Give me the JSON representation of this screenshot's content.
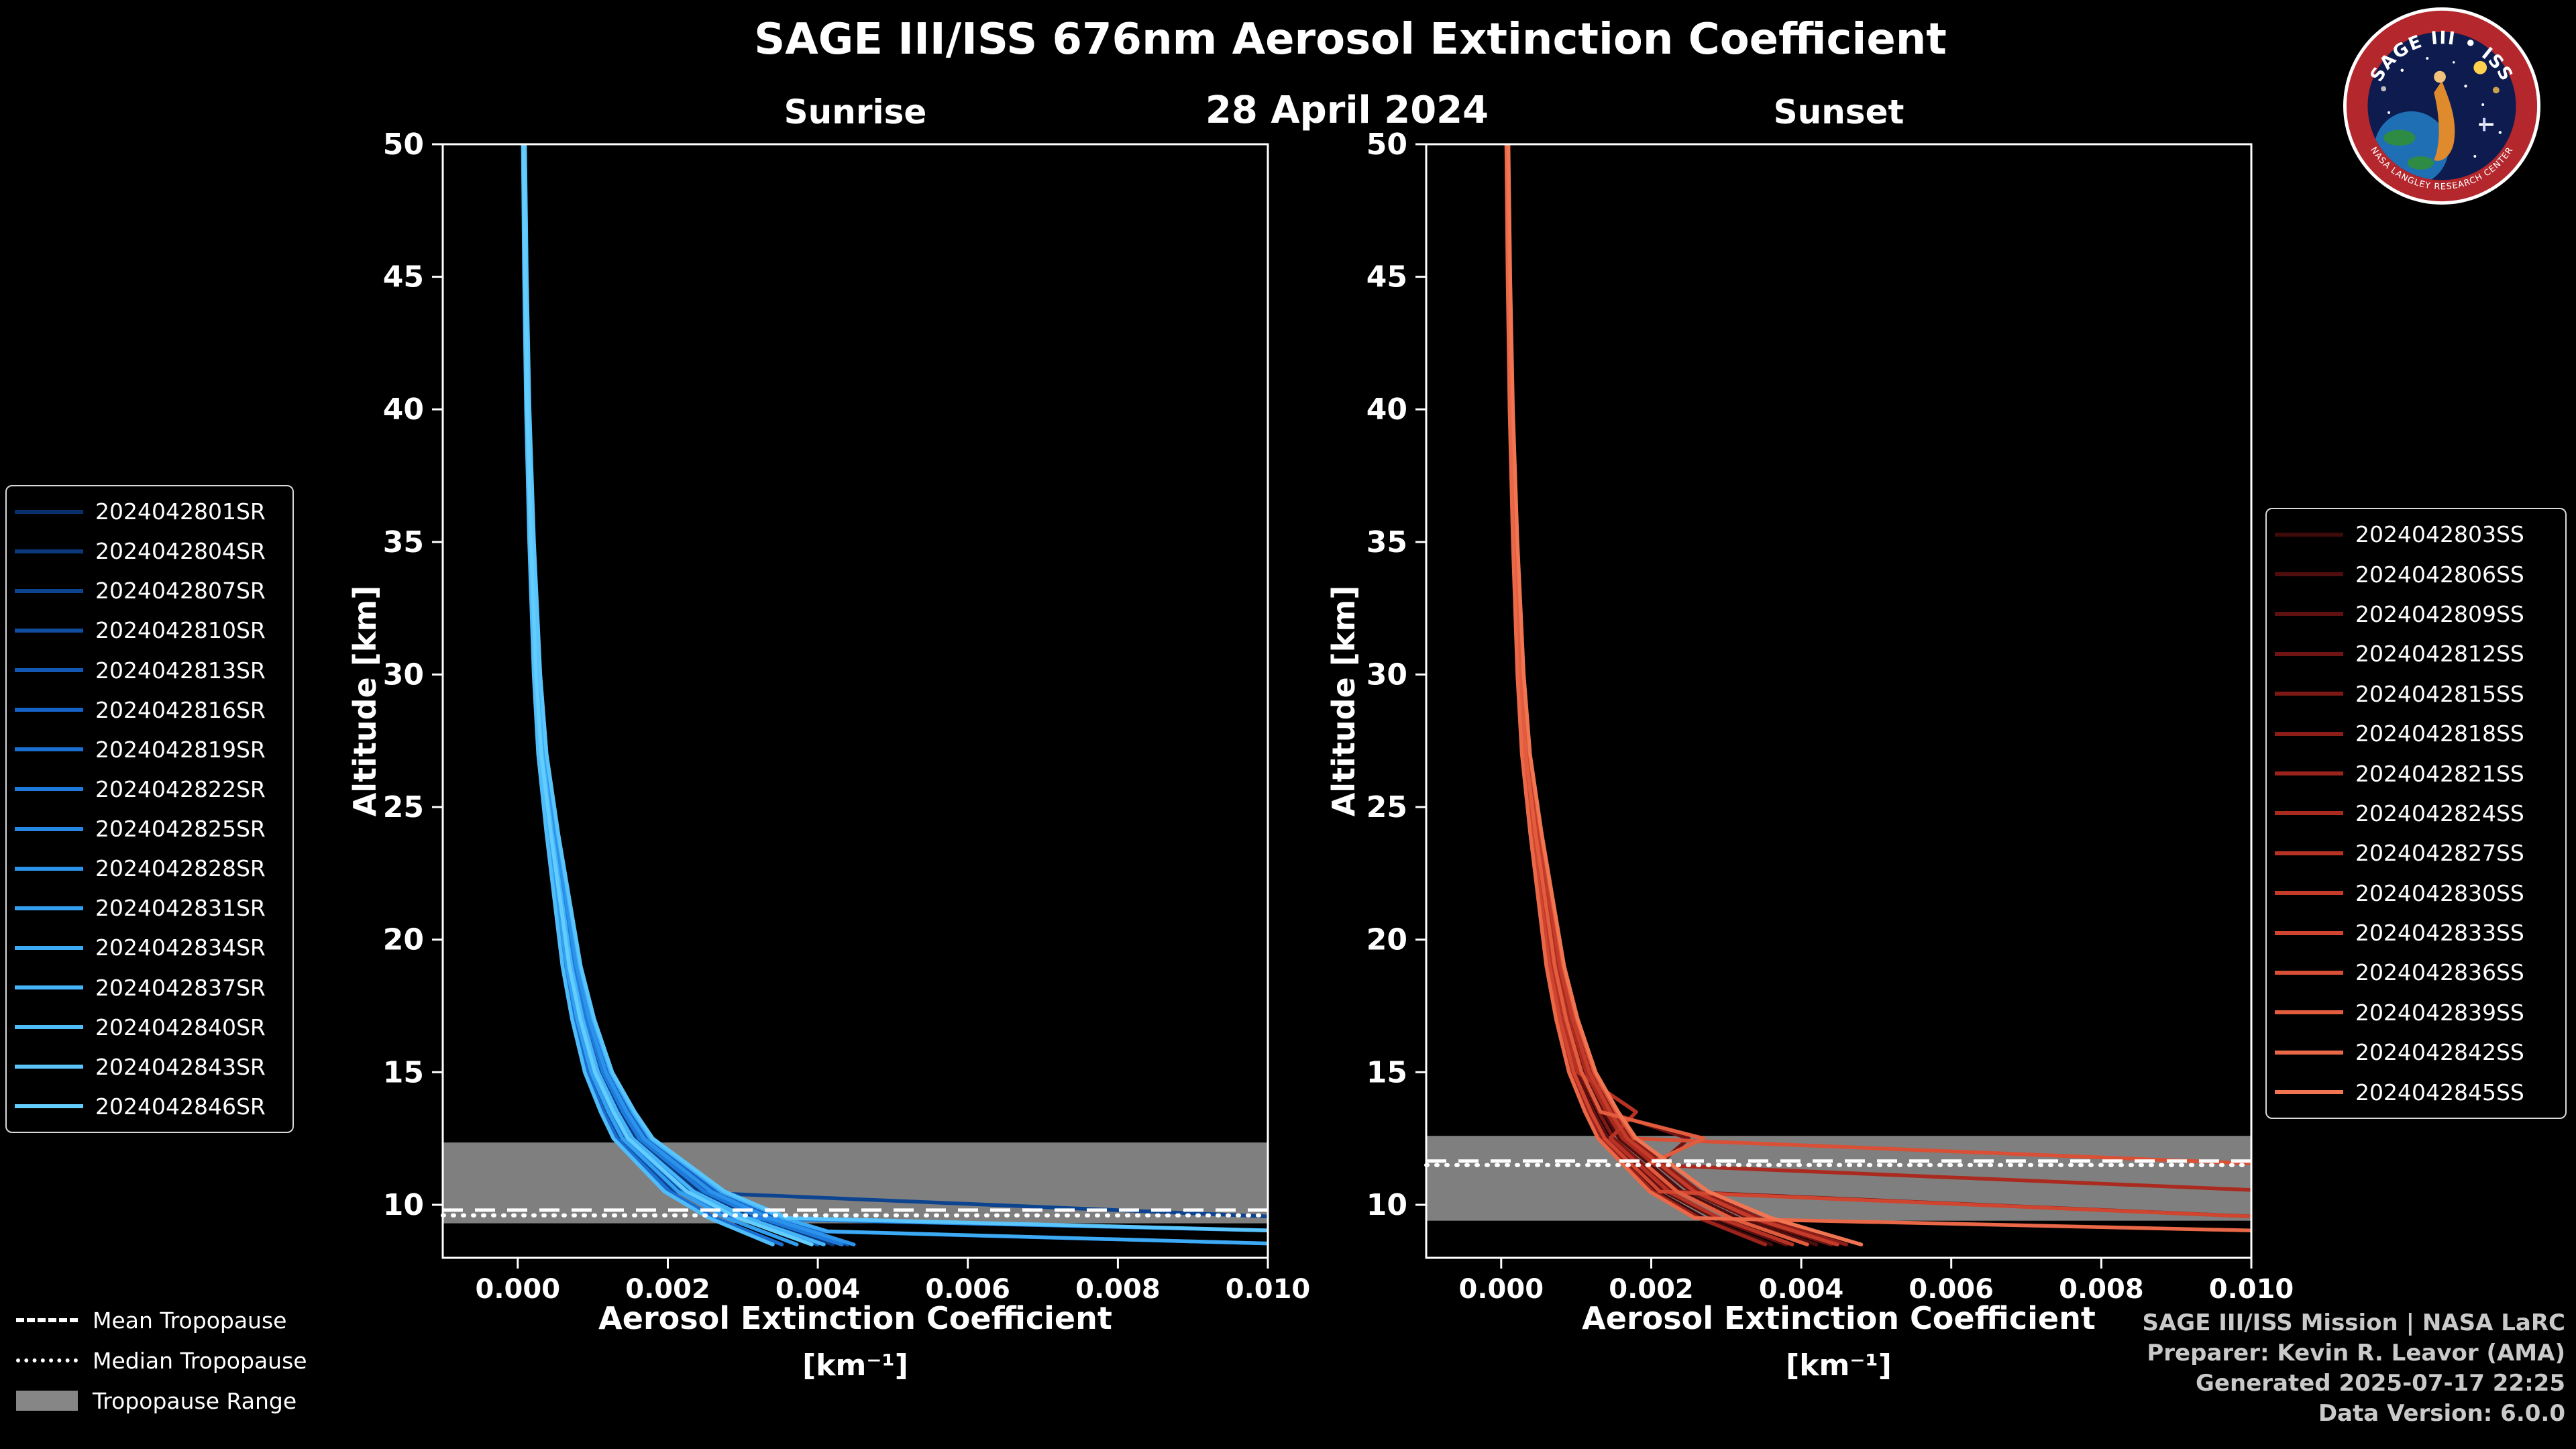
{
  "title": "SAGE III/ISS 676nm Aerosol Extinction Coefficient",
  "date": "28 April 2024",
  "panels": {
    "left_title": "Sunrise",
    "right_title": "Sunset"
  },
  "axis": {
    "xlabel": "Aerosol Extinction Coefficient",
    "xunits": "[km⁻¹]",
    "ylabel": "Altitude [km]",
    "xlim": [
      -0.001,
      0.01
    ],
    "ylim": [
      8,
      50
    ],
    "xticks": [
      0,
      0.002,
      0.004,
      0.006,
      0.008,
      0.01
    ],
    "xtick_labels": [
      "0.000",
      "0.002",
      "0.004",
      "0.006",
      "0.008",
      "0.010"
    ],
    "yticks": [
      10,
      15,
      20,
      25,
      30,
      35,
      40,
      45,
      50
    ]
  },
  "styles": {
    "band_color": "#868686",
    "tropopause_line_color": "#ffffff",
    "background": "#000000"
  },
  "tropopause_legend": {
    "mean": "Mean Tropopause",
    "median": "Median Tropopause",
    "range": "Tropopause Range"
  },
  "footer": {
    "line1": "SAGE III/ISS Mission | NASA LaRC",
    "line2": "Preparer: Kevin R. Leavor (AMA)",
    "line3": "Generated 2025-07-17 22:25",
    "line4": "Data Version: 6.0.0"
  },
  "logo": {
    "title": "SAGE III • ISS",
    "ring_text": "NASA LANGLEY RESEARCH CENTER"
  },
  "chart_data": [
    {
      "type": "line",
      "panel": "sunrise",
      "title": "Sunrise",
      "orientation": "vertical-profile",
      "xlabel": "Aerosol Extinction Coefficient [km⁻¹]",
      "ylabel": "Altitude [km]",
      "xlim": [
        -0.001,
        0.01
      ],
      "ylim": [
        8,
        50
      ],
      "tropopause": {
        "mean": 9.8,
        "median": 9.6,
        "range": [
          9.3,
          12.35
        ]
      },
      "altitudes": [
        50,
        45,
        40,
        35,
        30,
        27,
        24,
        21,
        19,
        17,
        15,
        13.5,
        12.5,
        11.5,
        10.5,
        9.5,
        9,
        8.5
      ],
      "series": [
        {
          "name": "2024042801SR",
          "color": "#08306b",
          "values": [
            7.6e-05,
            9.5e-05,
            0.000124,
            0.000171,
            0.000238,
            0.000304,
            0.000428,
            0.00057,
            0.000665,
            0.000808,
            0.000998,
            0.001235,
            0.001425,
            0.001805,
            0.002185,
            0.00285,
            0.0105,
            null
          ]
        },
        {
          "name": "2024042804SR",
          "color": "#0a3a7d",
          "values": [
            8.4e-05,
            0.000105,
            0.000137,
            0.000189,
            0.000263,
            0.000336,
            0.000473,
            0.00063,
            0.000735,
            0.000893,
            0.001103,
            0.001365,
            0.001575,
            0.001995,
            0.002415,
            0.00315,
            0.003675,
            0.0042
          ]
        },
        {
          "name": "2024042807SR",
          "color": "#0d448f",
          "values": [
            7.2e-05,
            9e-05,
            0.000117,
            0.000162,
            0.000225,
            0.000288,
            0.000405,
            0.00054,
            0.00063,
            0.000765,
            0.000945,
            0.00117,
            0.00135,
            0.00171,
            0.00207,
            0.0105,
            null,
            null
          ]
        },
        {
          "name": "2024042810SR",
          "color": "#0f4ea1",
          "values": [
            8.8e-05,
            0.00011,
            0.000143,
            0.000198,
            0.000275,
            0.000352,
            0.000495,
            0.00066,
            0.00077,
            0.000935,
            0.001155,
            0.00143,
            0.00165,
            0.00209,
            0.00253,
            0.0033,
            0.00385,
            0.0044
          ]
        },
        {
          "name": "2024042813SR",
          "color": "#1258b3",
          "values": [
            8e-05,
            0.0001,
            0.00013,
            0.00018,
            0.00025,
            0.00032,
            0.00045,
            0.0006,
            0.0007,
            0.00085,
            0.00105,
            0.0013,
            0.0015,
            0.0019,
            0.0023,
            0.003,
            0.0035,
            0.004
          ]
        },
        {
          "name": "2024042816SR",
          "color": "#1563c5",
          "values": [
            9.2e-05,
            0.000115,
            0.00015,
            0.000207,
            0.000288,
            0.000368,
            0.000518,
            0.00069,
            0.000805,
            0.000978,
            0.001208,
            0.001495,
            0.001725,
            0.002185,
            0.002645,
            0.00345,
            0.004025,
            0.0105
          ]
        },
        {
          "name": "2024042819SR",
          "color": "#1a6fd1",
          "values": [
            7e-05,
            8.8e-05,
            0.000114,
            0.000158,
            0.00022,
            0.000282,
            0.000396,
            0.000528,
            0.000616,
            0.000748,
            0.000924,
            0.001144,
            0.00132,
            0.001672,
            0.002024,
            0.00264,
            0.00308,
            0.00352
          ]
        },
        {
          "name": "2024042822SR",
          "color": "#1f7bdb",
          "values": [
            8.6e-05,
            0.000108,
            0.00014,
            0.000194,
            0.00027,
            0.000346,
            0.000486,
            0.000648,
            0.000756,
            0.000918,
            0.001134,
            0.001404,
            0.00162,
            0.002052,
            0.002484,
            0.00324,
            0.00378,
            0.00432
          ]
        },
        {
          "name": "2024042825SR",
          "color": "#2587e3",
          "values": [
            7.8e-05,
            9.7e-05,
            0.000126,
            0.000175,
            0.000243,
            0.00031,
            0.000437,
            0.000582,
            0.000679,
            0.000825,
            0.001019,
            0.001261,
            0.001455,
            0.001843,
            0.002231,
            0.00291,
            0.0105,
            null
          ]
        },
        {
          "name": "2024042828SR",
          "color": "#2b93ea",
          "values": [
            9e-05,
            0.000112,
            0.000146,
            0.000202,
            0.00028,
            0.000358,
            0.000504,
            0.000672,
            0.000784,
            0.000952,
            0.001176,
            0.001456,
            0.00168,
            0.002128,
            0.002576,
            0.00336,
            0.00392,
            0.00448
          ]
        },
        {
          "name": "2024042831SR",
          "color": "#339ff0",
          "values": [
            7.4e-05,
            9.3e-05,
            0.000121,
            0.000167,
            0.000233,
            0.000298,
            0.000419,
            0.000558,
            0.000651,
            0.000791,
            0.000977,
            0.00121,
            0.001395,
            0.001767,
            0.002139,
            0.00279,
            0.003255,
            0.00372
          ]
        },
        {
          "name": "2024042834SR",
          "color": "#3caaf5",
          "values": [
            9.4e-05,
            0.000118,
            0.000153,
            0.000212,
            0.000295,
            0.000378,
            0.000531,
            0.000708,
            0.000826,
            0.001003,
            0.001239,
            0.001534,
            0.00177,
            0.002242,
            0.002714,
            0.00354,
            0.00413,
            0.0105
          ]
        },
        {
          "name": "2024042837SR",
          "color": "#45b4f8",
          "values": [
            8.2e-05,
            0.000102,
            0.000133,
            0.000184,
            0.000255,
            0.000326,
            0.000459,
            0.000612,
            0.000714,
            0.000867,
            0.001071,
            0.001326,
            0.00153,
            0.001938,
            0.002346,
            0.00306,
            0.00357,
            0.00408
          ]
        },
        {
          "name": "2024042840SR",
          "color": "#4fbdfa",
          "values": [
            6.8e-05,
            8.5e-05,
            0.000111,
            0.000153,
            0.000213,
            0.000272,
            0.000383,
            0.00051,
            0.000595,
            0.000723,
            0.000893,
            0.001105,
            0.001275,
            0.001615,
            0.001955,
            0.00255,
            0.002975,
            0.0034
          ]
        },
        {
          "name": "2024042843SR",
          "color": "#59c5fc",
          "values": [
            9.6e-05,
            0.00012,
            0.000156,
            0.000216,
            0.0003,
            0.000384,
            0.00054,
            0.00072,
            0.00084,
            0.00102,
            0.00126,
            0.00156,
            0.0018,
            0.00228,
            0.00276,
            0.0036,
            0.0105,
            null
          ]
        },
        {
          "name": "2024042846SR",
          "color": "#63cdfe",
          "values": [
            7.8e-05,
            9.8e-05,
            0.000127,
            0.000176,
            0.000245,
            0.000314,
            0.000441,
            0.000588,
            0.000686,
            0.000833,
            0.001029,
            0.001274,
            0.00147,
            0.001862,
            0.002254,
            0.00294,
            0.00343,
            0.00392
          ]
        }
      ]
    },
    {
      "type": "line",
      "panel": "sunset",
      "title": "Sunset",
      "orientation": "vertical-profile",
      "xlabel": "Aerosol Extinction Coefficient [km⁻¹]",
      "ylabel": "Altitude [km]",
      "xlim": [
        -0.001,
        0.01
      ],
      "ylim": [
        8,
        50
      ],
      "tropopause": {
        "mean": 11.65,
        "median": 11.5,
        "range": [
          9.4,
          12.6
        ]
      },
      "altitudes": [
        50,
        45,
        40,
        35,
        30,
        27,
        24,
        21,
        19,
        17,
        15,
        13.5,
        12.5,
        11.5,
        10.5,
        9.5,
        9,
        8.5
      ],
      "series": [
        {
          "name": "2024042803SS",
          "color": "#3f0a0a",
          "values": [
            7.2e-05,
            9e-05,
            0.000117,
            0.000162,
            0.000225,
            0.000288,
            0.000405,
            0.00054,
            0.00063,
            0.000765,
            0.000945,
            0.00117,
            0.00135,
            0.00171,
            0.00207,
            0.0027,
            0.00315,
            0.0036
          ]
        },
        {
          "name": "2024042806SS",
          "color": "#4f0d0d",
          "values": [
            8.4e-05,
            0.000105,
            0.000137,
            0.000189,
            0.000263,
            0.000336,
            0.000473,
            0.00063,
            0.000735,
            0.000893,
            0.001103,
            0.001365,
            0.001575,
            0.001995,
            0.002415,
            0.00315,
            0.003675,
            0.0042
          ]
        },
        {
          "name": "2024042809SS",
          "color": "#5f1010",
          "values": [
            7.6e-05,
            9.5e-05,
            0.000124,
            0.000171,
            0.000238,
            0.000304,
            0.000428,
            0.00057,
            0.000665,
            0.000808,
            0.000998,
            0.001235,
            0.001425,
            0.001805,
            0.002185,
            0.00285,
            0.003325,
            0.0038
          ]
        },
        {
          "name": "2024042812SS",
          "color": "#6f1413",
          "values": [
            8.8e-05,
            0.00011,
            0.000143,
            0.000198,
            0.000275,
            0.000352,
            0.000495,
            0.00066,
            0.00077,
            0.000935,
            0.001155,
            0.00143,
            0.0025,
            0.00209,
            0.00253,
            0.0033,
            0.00385,
            0.0044
          ]
        },
        {
          "name": "2024042815SS",
          "color": "#7e1815",
          "values": [
            8e-05,
            0.0001,
            0.00013,
            0.00018,
            0.00025,
            0.00032,
            0.00045,
            0.0006,
            0.0007,
            0.00085,
            0.00105,
            0.0013,
            0.0015,
            0.0019,
            0.0023,
            0.0105,
            null,
            null
          ]
        },
        {
          "name": "2024042818SS",
          "color": "#8d1d18",
          "values": [
            9.2e-05,
            0.000115,
            0.00015,
            0.000207,
            0.000288,
            0.000368,
            0.000518,
            0.00069,
            0.000805,
            0.000978,
            0.001208,
            0.001495,
            0.001725,
            0.002185,
            0.002645,
            0.00345,
            0.004025,
            0.0046
          ]
        },
        {
          "name": "2024042821SS",
          "color": "#9c231b",
          "values": [
            7e-05,
            8.8e-05,
            0.000114,
            0.000158,
            0.00022,
            0.000282,
            0.000396,
            0.000528,
            0.000616,
            0.000748,
            0.000924,
            0.001144,
            0.00132,
            0.001672,
            0.002024,
            0.00264,
            0.00308,
            0.00352
          ]
        },
        {
          "name": "2024042824SS",
          "color": "#aa2a1f",
          "values": [
            8.6e-05,
            0.000108,
            0.00014,
            0.000194,
            0.00027,
            0.000346,
            0.000486,
            0.000648,
            0.000756,
            0.000918,
            0.001134,
            0.001404,
            0.00162,
            0.002052,
            0.0105,
            null,
            null,
            null
          ]
        },
        {
          "name": "2024042827SS",
          "color": "#b83224",
          "values": [
            7.8e-05,
            9.7e-05,
            0.000126,
            0.000175,
            0.000243,
            0.00031,
            0.000437,
            0.000582,
            0.000679,
            0.000825,
            0.001019,
            0.0018,
            0.001455,
            0.001843,
            0.002231,
            0.00291,
            0.0034,
            0.00388
          ]
        },
        {
          "name": "2024042830SS",
          "color": "#c43b29",
          "values": [
            9e-05,
            0.000112,
            0.000146,
            0.000202,
            0.00028,
            0.000358,
            0.000504,
            0.000672,
            0.000784,
            0.000952,
            0.001176,
            0.001456,
            0.00168,
            0.002128,
            0.002576,
            0.00336,
            0.00392,
            0.00448
          ]
        },
        {
          "name": "2024042833SS",
          "color": "#cf452f",
          "values": [
            7.4e-05,
            9.2e-05,
            0.00012,
            0.000166,
            0.00023,
            0.000294,
            0.000414,
            0.000552,
            0.000644,
            0.000782,
            0.000966,
            0.001196,
            0.00138,
            0.001748,
            0.002116,
            0.0105,
            null,
            null
          ]
        },
        {
          "name": "2024042836SS",
          "color": "#d95036",
          "values": [
            9.4e-05,
            0.000118,
            0.000153,
            0.000212,
            0.000295,
            0.000378,
            0.000531,
            0.000708,
            0.000826,
            0.001003,
            0.001239,
            0.001534,
            0.00177,
            0.0105,
            null,
            null,
            null,
            null
          ]
        },
        {
          "name": "2024042839SS",
          "color": "#e25c3e",
          "values": [
            8.2e-05,
            0.000102,
            0.000133,
            0.000184,
            0.000255,
            0.000326,
            0.000459,
            0.000612,
            0.000714,
            0.000867,
            0.001071,
            0.001326,
            0.0027,
            0.001938,
            0.002346,
            0.00306,
            0.00357,
            0.00408
          ]
        },
        {
          "name": "2024042842SS",
          "color": "#ea6847",
          "values": [
            6.9e-05,
            8.6e-05,
            0.000112,
            0.000155,
            0.000215,
            0.000275,
            0.000387,
            0.000516,
            0.000602,
            0.000731,
            0.000903,
            0.001118,
            0.00129,
            0.001634,
            0.001978,
            0.00258,
            0.0105,
            null
          ]
        },
        {
          "name": "2024042845SS",
          "color": "#f17551",
          "values": [
            9.6e-05,
            0.00012,
            0.000156,
            0.000216,
            0.0003,
            0.000384,
            0.00054,
            0.00072,
            0.00084,
            0.00102,
            0.00126,
            0.00156,
            0.0018,
            0.00228,
            0.00276,
            0.0036,
            0.0042,
            0.0048
          ]
        }
      ]
    }
  ]
}
